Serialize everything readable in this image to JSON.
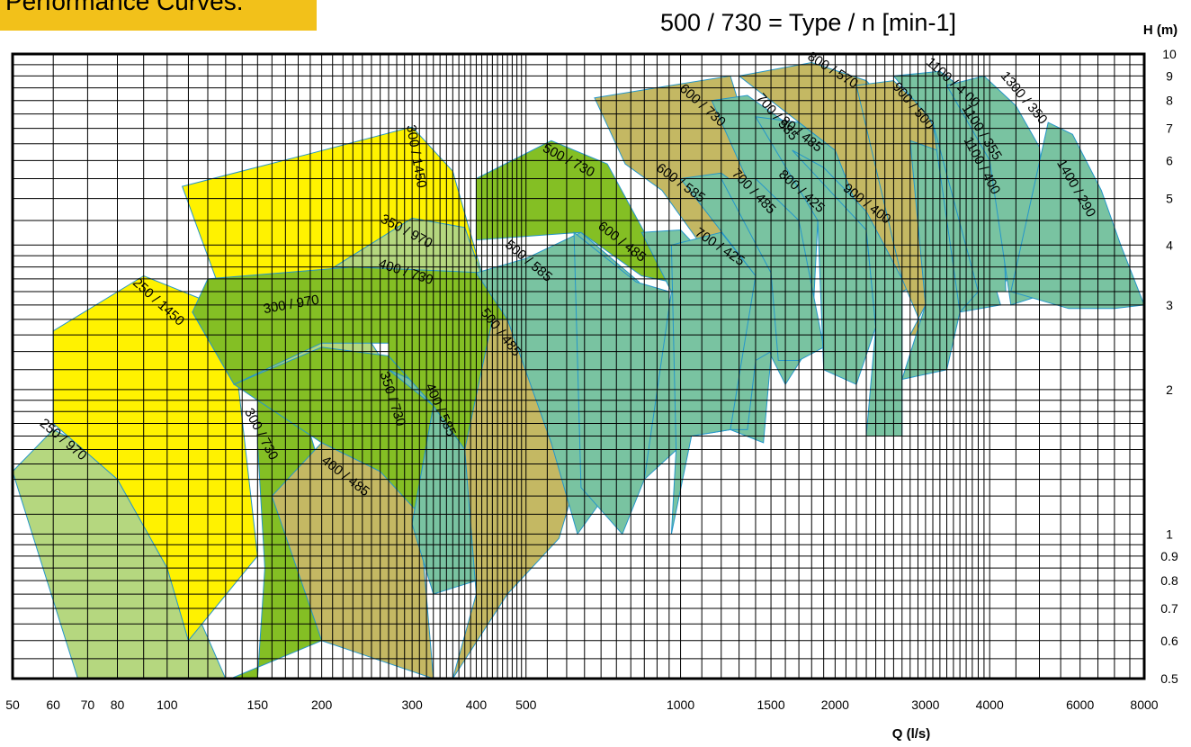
{
  "header": {
    "title": "Performance Curves:"
  },
  "legend_note": "500 / 730 = Type / n [min-1]",
  "colors": {
    "yellow": "#fff200",
    "light_green": "#b5d77f",
    "mid_green": "#84bf24",
    "olive": "#c4b863",
    "teal": "#79c3a1",
    "outline": "#2596c9",
    "grid": "#000000",
    "header_badge": "#f2c11a"
  },
  "chart_data": {
    "type": "area",
    "title": "",
    "xlabel": "Q (l/s)",
    "ylabel": "H (m)",
    "x_scale": "log",
    "y_scale": "log",
    "xlim": [
      50,
      8000
    ],
    "ylim": [
      0.5,
      10
    ],
    "x_ticks": [
      "50",
      "60",
      "70",
      "80",
      "100",
      "150",
      "200",
      "300",
      "400",
      "500",
      "1000",
      "1500",
      "2000",
      "3000",
      "4000",
      "6000",
      "8000"
    ],
    "y_ticks": [
      "10",
      "9",
      "8",
      "7",
      "6",
      "5",
      "4",
      "3",
      "2",
      "1",
      "0.9",
      "0.8",
      "0.7",
      "0.6",
      "0.5"
    ],
    "grid": true,
    "series": [
      {
        "name": "250 / 970",
        "color": "light_green",
        "points": [
          [
            50,
            1.35
          ],
          [
            60,
            1.65
          ],
          [
            80,
            1.42
          ],
          [
            100,
            0.95
          ],
          [
            130,
            0.5
          ],
          [
            67,
            0.5
          ]
        ]
      },
      {
        "name": "250 / 1450",
        "color": "yellow",
        "points": [
          [
            60,
            2.65
          ],
          [
            90,
            3.45
          ],
          [
            120,
            3.05
          ],
          [
            135,
            2.45
          ],
          [
            150,
            0.9
          ],
          [
            110,
            0.6
          ],
          [
            100,
            0.85
          ],
          [
            80,
            1.3
          ],
          [
            60,
            1.7
          ]
        ]
      },
      {
        "name": "300 / 730",
        "color": "mid_green",
        "points": [
          [
            133,
            0.5
          ],
          [
            150,
            0.5
          ],
          [
            155,
            0.85
          ],
          [
            150,
            1.55
          ],
          [
            150,
            1.9
          ],
          [
            180,
            1.95
          ],
          [
            200,
            1.35
          ],
          [
            200,
            0.6
          ],
          [
            133,
            0.5
          ]
        ]
      },
      {
        "name": "300 / 970",
        "color": "light_green",
        "points": [
          [
            112,
            2.9
          ],
          [
            175,
            3.2
          ],
          [
            200,
            3.2
          ],
          [
            250,
            2.5
          ],
          [
            270,
            2.2
          ],
          [
            230,
            2.05
          ],
          [
            135,
            2.05
          ],
          [
            112,
            2.9
          ]
        ]
      },
      {
        "name": "300 / 1450",
        "color": "yellow",
        "points": [
          [
            107,
            5.3
          ],
          [
            190,
            6.2
          ],
          [
            300,
            7.05
          ],
          [
            360,
            5.7
          ],
          [
            410,
            3.5
          ],
          [
            320,
            3.5
          ],
          [
            200,
            3.3
          ],
          [
            130,
            3.0
          ],
          [
            107,
            5.3
          ]
        ]
      },
      {
        "name": "350 / 730",
        "color": "mid_green",
        "points": [
          [
            135,
            2.05
          ],
          [
            200,
            2.45
          ],
          [
            270,
            2.35
          ],
          [
            330,
            1.85
          ],
          [
            320,
            1.1
          ],
          [
            300,
            1.05
          ],
          [
            260,
            1.35
          ],
          [
            200,
            1.55
          ],
          [
            150,
            1.9
          ],
          [
            135,
            2.05
          ]
        ]
      },
      {
        "name": "350 / 970",
        "color": "light_green",
        "points": [
          [
            190,
            3.35
          ],
          [
            300,
            4.55
          ],
          [
            380,
            4.35
          ],
          [
            410,
            3.45
          ],
          [
            300,
            3.3
          ],
          [
            190,
            3.35
          ]
        ]
      },
      {
        "name": "400 / 485",
        "color": "olive",
        "points": [
          [
            160,
            1.2
          ],
          [
            200,
            1.55
          ],
          [
            260,
            1.35
          ],
          [
            310,
            1.1
          ],
          [
            330,
            0.5
          ],
          [
            200,
            0.6
          ],
          [
            160,
            1.2
          ]
        ]
      },
      {
        "name": "400 / 585",
        "color": "teal",
        "points": [
          [
            270,
            2.2
          ],
          [
            330,
            2.0
          ],
          [
            380,
            1.5
          ],
          [
            400,
            0.8
          ],
          [
            330,
            0.75
          ],
          [
            300,
            1.05
          ],
          [
            330,
            1.85
          ],
          [
            270,
            2.2
          ]
        ]
      },
      {
        "name": "400 / 730",
        "color": "mid_green",
        "points": [
          [
            120,
            3.4
          ],
          [
            230,
            3.6
          ],
          [
            420,
            3.5
          ],
          [
            500,
            2.75
          ],
          [
            560,
            1.55
          ],
          [
            400,
            1.15
          ],
          [
            380,
            1.5
          ],
          [
            330,
            1.85
          ],
          [
            270,
            2.35
          ],
          [
            270,
            2.5
          ],
          [
            200,
            2.5
          ],
          [
            135,
            2.05
          ],
          [
            112,
            2.9
          ],
          [
            120,
            3.4
          ]
        ]
      },
      {
        "name": "500 / 485",
        "color": "olive",
        "points": [
          [
            360,
            0.5
          ],
          [
            460,
            0.75
          ],
          [
            580,
            0.98
          ],
          [
            620,
            1.25
          ],
          [
            560,
            1.55
          ],
          [
            500,
            2.25
          ],
          [
            460,
            2.8
          ],
          [
            430,
            2.8
          ],
          [
            380,
            1.5
          ],
          [
            400,
            0.75
          ],
          [
            360,
            0.5
          ]
        ]
      },
      {
        "name": "500 / 585",
        "color": "teal",
        "points": [
          [
            400,
            3.5
          ],
          [
            500,
            3.75
          ],
          [
            640,
            4.25
          ],
          [
            830,
            3.35
          ],
          [
            800,
            2.0
          ],
          [
            770,
            1.35
          ],
          [
            630,
            1.0
          ],
          [
            600,
            1.2
          ],
          [
            560,
            1.55
          ],
          [
            460,
            2.8
          ],
          [
            400,
            3.5
          ]
        ]
      },
      {
        "name": "500 / 730",
        "color": "mid_green",
        "points": [
          [
            400,
            5.5
          ],
          [
            560,
            6.6
          ],
          [
            720,
            5.9
          ],
          [
            960,
            3.35
          ],
          [
            840,
            3.45
          ],
          [
            640,
            4.25
          ],
          [
            400,
            4.1
          ],
          [
            400,
            5.5
          ]
        ]
      },
      {
        "name": "600 / 485",
        "color": "teal",
        "points": [
          [
            620,
            4.25
          ],
          [
            820,
            3.35
          ],
          [
            950,
            3.2
          ],
          [
            960,
            1.5
          ],
          [
            850,
            1.3
          ],
          [
            770,
            1.0
          ],
          [
            640,
            1.25
          ],
          [
            620,
            4.25
          ]
        ]
      },
      {
        "name": "600 / 585",
        "color": "teal",
        "points": [
          [
            840,
            4.25
          ],
          [
            1000,
            4.3
          ],
          [
            1200,
            3.5
          ],
          [
            1250,
            1.65
          ],
          [
            1050,
            1.6
          ],
          [
            850,
            1.3
          ],
          [
            960,
            3.2
          ],
          [
            840,
            4.25
          ]
        ]
      },
      {
        "name": "600 / 730",
        "color": "olive",
        "points": [
          [
            680,
            8.1
          ],
          [
            960,
            8.6
          ],
          [
            1250,
            9.0
          ],
          [
            1450,
            5.4
          ],
          [
            1400,
            3.45
          ],
          [
            1200,
            3.5
          ],
          [
            920,
            5.2
          ],
          [
            780,
            5.9
          ],
          [
            680,
            8.1
          ]
        ]
      },
      {
        "name": "700 / 425",
        "color": "teal",
        "points": [
          [
            960,
            4.0
          ],
          [
            1200,
            4.25
          ],
          [
            1400,
            3.45
          ],
          [
            1500,
            2.35
          ],
          [
            1450,
            1.55
          ],
          [
            1250,
            1.65
          ],
          [
            1050,
            1.6
          ],
          [
            960,
            1.0
          ],
          [
            980,
            1.5
          ],
          [
            960,
            4.0
          ]
        ]
      },
      {
        "name": "700 / 485",
        "color": "teal",
        "points": [
          [
            1000,
            5.5
          ],
          [
            1200,
            5.65
          ],
          [
            1400,
            5.0
          ],
          [
            1500,
            3.5
          ],
          [
            1550,
            2.45
          ],
          [
            1400,
            2.3
          ],
          [
            1350,
            1.65
          ],
          [
            1250,
            1.65
          ],
          [
            1400,
            3.45
          ],
          [
            1000,
            5.5
          ]
        ]
      },
      {
        "name": "700 / 585",
        "color": "teal",
        "points": [
          [
            1150,
            8.0
          ],
          [
            1350,
            8.2
          ],
          [
            1600,
            7.2
          ],
          [
            1850,
            4.5
          ],
          [
            1800,
            2.5
          ],
          [
            1600,
            2.05
          ],
          [
            1500,
            2.35
          ],
          [
            1500,
            3.5
          ],
          [
            1400,
            5.0
          ],
          [
            1150,
            8.0
          ]
        ]
      },
      {
        "name": "800 / 425",
        "color": "teal",
        "points": [
          [
            1200,
            5.5
          ],
          [
            1400,
            5.5
          ],
          [
            1700,
            4.5
          ],
          [
            1900,
            2.45
          ],
          [
            1700,
            2.3
          ],
          [
            1550,
            2.3
          ],
          [
            1500,
            3.5
          ],
          [
            1200,
            5.5
          ]
        ]
      },
      {
        "name": "80 / 485",
        "color": "teal",
        "points": [
          [
            1400,
            7.4
          ],
          [
            1700,
            7.2
          ],
          [
            2000,
            6.3
          ],
          [
            2300,
            4.3
          ],
          [
            2400,
            2.7
          ],
          [
            2200,
            2.05
          ],
          [
            1900,
            2.2
          ],
          [
            1850,
            4.5
          ],
          [
            1400,
            7.4
          ]
        ]
      },
      {
        "name": "800 / 570",
        "color": "olive",
        "points": [
          [
            1300,
            9.0
          ],
          [
            1800,
            9.6
          ],
          [
            2300,
            8.8
          ],
          [
            2800,
            7.0
          ],
          [
            3200,
            3.5
          ],
          [
            2700,
            3.2
          ],
          [
            2400,
            3.1
          ],
          [
            2300,
            4.3
          ],
          [
            2000,
            6.3
          ],
          [
            1300,
            9.0
          ]
        ]
      },
      {
        "name": "900 / 400",
        "color": "teal",
        "points": [
          [
            1650,
            6.3
          ],
          [
            1900,
            5.8
          ],
          [
            2300,
            4.7
          ],
          [
            2700,
            3.4
          ],
          [
            2700,
            1.6
          ],
          [
            2300,
            1.6
          ],
          [
            2400,
            2.7
          ],
          [
            2300,
            4.3
          ],
          [
            1650,
            6.3
          ]
        ]
      },
      {
        "name": "900 / 500",
        "color": "olive",
        "points": [
          [
            2200,
            8.6
          ],
          [
            2600,
            8.8
          ],
          [
            3000,
            7.6
          ],
          [
            3600,
            5.2
          ],
          [
            3800,
            3.5
          ],
          [
            3000,
            3.0
          ],
          [
            2800,
            2.6
          ],
          [
            3000,
            2.6
          ],
          [
            2700,
            3.4
          ],
          [
            2200,
            8.6
          ]
        ]
      },
      {
        "name": "1100 / 400",
        "color": "teal",
        "points": [
          [
            2800,
            6.6
          ],
          [
            3300,
            6.2
          ],
          [
            3700,
            5.0
          ],
          [
            4000,
            3.6
          ],
          [
            4200,
            3.0
          ],
          [
            3500,
            2.9
          ],
          [
            3300,
            2.2
          ],
          [
            2700,
            2.1
          ],
          [
            3000,
            3.0
          ],
          [
            2800,
            6.6
          ]
        ]
      },
      {
        "name": "1100 / 355",
        "color": "teal",
        "points": [
          [
            3100,
            7.2
          ],
          [
            3500,
            7.0
          ],
          [
            4000,
            6.0
          ],
          [
            4400,
            4.4
          ],
          [
            4500,
            3.4
          ],
          [
            3900,
            3.3
          ],
          [
            3500,
            2.9
          ],
          [
            3100,
            7.2
          ]
        ]
      },
      {
        "name": "1100 / 4 00",
        "color": "teal",
        "points": [
          [
            2600,
            9.0
          ],
          [
            3200,
            9.2
          ],
          [
            3800,
            8.0
          ],
          [
            4200,
            6.2
          ],
          [
            4300,
            3.2
          ],
          [
            3800,
            3.2
          ],
          [
            3100,
            7.2
          ],
          [
            2600,
            9.0
          ]
        ]
      },
      {
        "name": "1300 / 350",
        "color": "teal",
        "points": [
          [
            3300,
            8.6
          ],
          [
            3900,
            9.0
          ],
          [
            4500,
            7.8
          ],
          [
            5000,
            6.4
          ],
          [
            5300,
            3.2
          ],
          [
            4400,
            3.0
          ],
          [
            4000,
            6.0
          ],
          [
            3300,
            8.6
          ]
        ]
      },
      {
        "name": "1400 / 290",
        "color": "teal",
        "points": [
          [
            4400,
            3.2
          ],
          [
            5200,
            7.2
          ],
          [
            5800,
            6.8
          ],
          [
            6600,
            5.2
          ],
          [
            7200,
            4.0
          ],
          [
            8000,
            3.0
          ],
          [
            7000,
            2.95
          ],
          [
            5700,
            2.95
          ],
          [
            4400,
            3.2
          ]
        ]
      }
    ]
  }
}
